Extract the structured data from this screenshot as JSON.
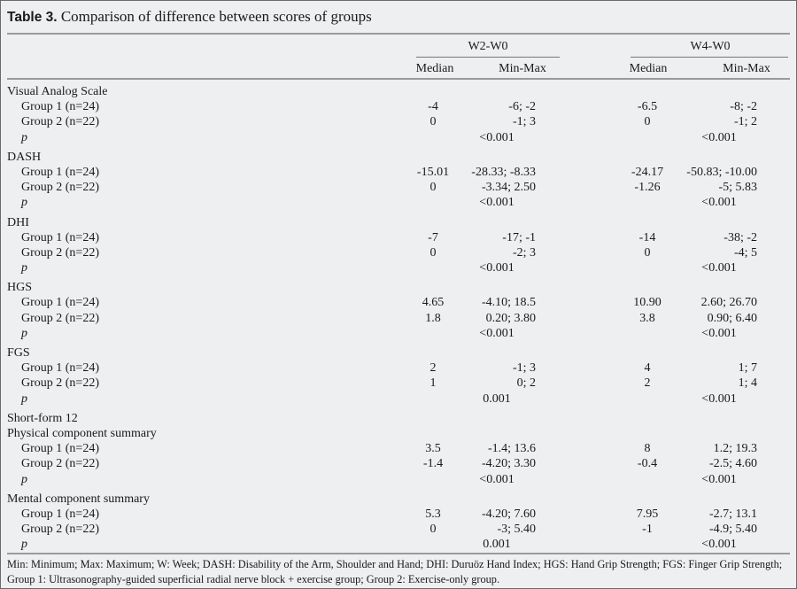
{
  "title": {
    "label": "Table 3.",
    "text": " Comparison of difference between scores of groups"
  },
  "header": {
    "group_w2": "W2-W0",
    "group_w4": "W4-W0",
    "median": "Median",
    "minmax": "Min-Max"
  },
  "rows": [
    {
      "type": "section",
      "label": "Visual Analog Scale"
    },
    {
      "type": "group",
      "label": "Group 1 (n=24)",
      "m2": "-4",
      "r2": "-6; -2",
      "m4": "-6.5",
      "r4": "-8; -2"
    },
    {
      "type": "group",
      "label": "Group 2 (n=22)",
      "m2": "0",
      "r2": "-1; 3",
      "m4": "0",
      "r4": "-1; 2"
    },
    {
      "type": "p",
      "label": "p",
      "p2": "<0.001",
      "p4": "<0.001"
    },
    {
      "type": "section",
      "label": "DASH",
      "gap": true
    },
    {
      "type": "group",
      "label": "Group 1 (n=24)",
      "m2": "-15.01",
      "r2": "-28.33; -8.33",
      "m4": "-24.17",
      "r4": "-50.83; -10.00"
    },
    {
      "type": "group",
      "label": "Group 2 (n=22)",
      "m2": "0",
      "r2": "-3.34; 2.50",
      "m4": "-1.26",
      "r4": "-5; 5.83"
    },
    {
      "type": "p",
      "label": "p",
      "p2": "<0.001",
      "p4": "<0.001"
    },
    {
      "type": "section",
      "label": "DHI",
      "gap": true
    },
    {
      "type": "group",
      "label": "Group 1 (n=24)",
      "m2": "-7",
      "r2": "-17; -1",
      "m4": "-14",
      "r4": "-38; -2"
    },
    {
      "type": "group",
      "label": "Group 2 (n=22)",
      "m2": "0",
      "r2": "-2; 3",
      "m4": "0",
      "r4": "-4; 5"
    },
    {
      "type": "p",
      "label": "p",
      "p2": "<0.001",
      "p4": "<0.001"
    },
    {
      "type": "section",
      "label": "HGS",
      "gap": true
    },
    {
      "type": "group",
      "label": "Group 1 (n=24)",
      "m2": "4.65",
      "r2": "-4.10; 18.5",
      "m4": "10.90",
      "r4": "2.60; 26.70"
    },
    {
      "type": "group",
      "label": "Group 2 (n=22)",
      "m2": "1.8",
      "r2": "0.20; 3.80",
      "m4": "3.8",
      "r4": "0.90; 6.40"
    },
    {
      "type": "p",
      "label": "p",
      "p2": "<0.001",
      "p4": "<0.001"
    },
    {
      "type": "section",
      "label": "FGS",
      "gap": true
    },
    {
      "type": "group",
      "label": "Group 1 (n=24)",
      "m2": "2",
      "r2": "-1; 3",
      "m4": "4",
      "r4": "1; 7"
    },
    {
      "type": "group",
      "label": "Group 2 (n=22)",
      "m2": "1",
      "r2": "0; 2",
      "m4": "2",
      "r4": "1; 4"
    },
    {
      "type": "p",
      "label": "p",
      "p2": "0.001",
      "p4": "<0.001"
    },
    {
      "type": "section",
      "label": "Short-form 12",
      "gap": true
    },
    {
      "type": "section",
      "label": "Physical component summary"
    },
    {
      "type": "group",
      "label": "Group 1 (n=24)",
      "m2": "3.5",
      "r2": "-1.4; 13.6",
      "m4": "8",
      "r4": "1.2; 19.3"
    },
    {
      "type": "group",
      "label": "Group 2 (n=22)",
      "m2": "-1.4",
      "r2": "-4.20; 3.30",
      "m4": "-0.4",
      "r4": "-2.5; 4.60"
    },
    {
      "type": "p",
      "label": "p",
      "p2": "<0.001",
      "p4": "<0.001"
    },
    {
      "type": "section",
      "label": "Mental component summary",
      "gap": true
    },
    {
      "type": "group",
      "label": "Group 1 (n=24)",
      "m2": "5.3",
      "r2": "-4.20; 7.60",
      "m4": "7.95",
      "r4": "-2.7; 13.1"
    },
    {
      "type": "group",
      "label": "Group 2 (n=22)",
      "m2": "0",
      "r2": "-3; 5.40",
      "m4": "-1",
      "r4": "-4.9; 5.40"
    },
    {
      "type": "p",
      "label": "p",
      "p2": "0.001",
      "p4": "<0.001"
    }
  ],
  "footnote": "Min: Minimum; Max: Maximum; W: Week; DASH: Disability of the Arm, Shoulder and Hand; DHI: Duruöz Hand Index; HGS: Hand Grip Strength; FGS: Finger Grip Strength; Group 1: Ultrasonography-guided superficial radial nerve block + exercise group; Group 2: Exercise-only group."
}
